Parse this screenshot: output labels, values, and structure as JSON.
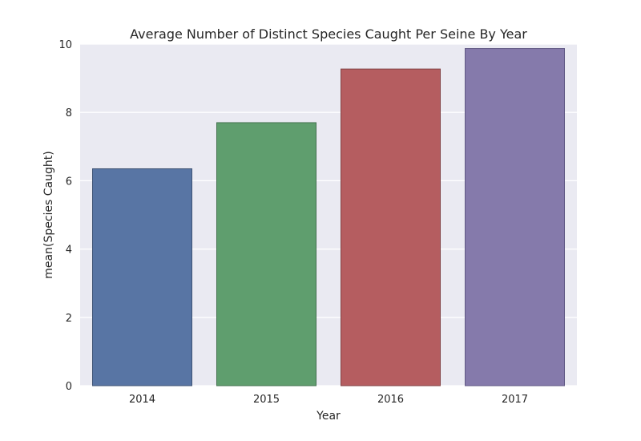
{
  "chart_data": {
    "type": "bar",
    "title": "Average Number of Distinct Species Caught Per Seine By Year",
    "xlabel": "Year",
    "ylabel": "mean(Species Caught)",
    "categories": [
      "2014",
      "2015",
      "2016",
      "2017"
    ],
    "values": [
      6.35,
      7.7,
      9.27,
      9.87
    ],
    "colors": [
      "#5875a4",
      "#5f9e6e",
      "#b55d60",
      "#857aab"
    ],
    "edge_colors": [
      "#3f5475",
      "#43714f",
      "#834345",
      "#605884"
    ],
    "ylim": [
      0,
      10
    ],
    "yticks": [
      "0",
      "2",
      "4",
      "6",
      "8",
      "10"
    ],
    "background_color": "#eaeaf2",
    "grid": true,
    "grid_color": "#ffffff"
  }
}
